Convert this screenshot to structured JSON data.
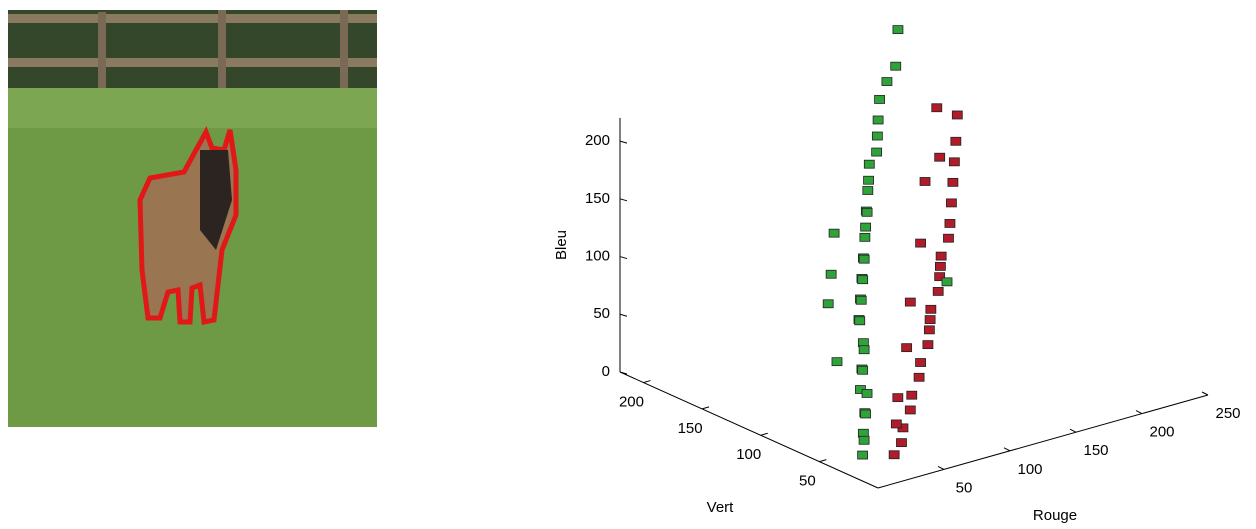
{
  "chart_data": {
    "type": "scatter3d",
    "xlabel": "Rouge",
    "ylabel": "Vert",
    "zlabel": "Bleu",
    "xlim": [
      0,
      250
    ],
    "ylim": [
      0,
      220
    ],
    "zlim": [
      0,
      220
    ],
    "xticks": [
      50,
      100,
      150,
      200,
      250
    ],
    "yticks": [
      50,
      100,
      150,
      200
    ],
    "zticks": [
      0,
      50,
      100,
      150,
      200
    ],
    "series": [
      {
        "color": "#b01c2a",
        "x": [
          30,
          40,
          50,
          60,
          70,
          80,
          90,
          100,
          110,
          120,
          130,
          140,
          150,
          160,
          170,
          180,
          190,
          200,
          210,
          220,
          180,
          200,
          160,
          130,
          100,
          75,
          55,
          45,
          115,
          145
        ],
        "y": [
          20,
          25,
          35,
          40,
          50,
          55,
          65,
          70,
          80,
          90,
          95,
          105,
          115,
          120,
          130,
          140,
          150,
          160,
          170,
          180,
          150,
          175,
          140,
          110,
          85,
          60,
          45,
          35,
          85,
          110
        ],
        "z": [
          10,
          15,
          20,
          30,
          35,
          45,
          50,
          60,
          65,
          75,
          85,
          90,
          100,
          110,
          115,
          125,
          135,
          145,
          155,
          170,
          160,
          185,
          150,
          120,
          90,
          70,
          40,
          25,
          70,
          95
        ]
      },
      {
        "color": "#2fa33a",
        "x": [
          15,
          20,
          25,
          30,
          35,
          40,
          45,
          50,
          55,
          60,
          65,
          70,
          75,
          80,
          85,
          90,
          95,
          100,
          105,
          110,
          115,
          120,
          125,
          130,
          135,
          140,
          150,
          155,
          160,
          170,
          180,
          200,
          215,
          150,
          60,
          80,
          100,
          40
        ],
        "y": [
          30,
          35,
          40,
          45,
          50,
          60,
          60,
          70,
          75,
          80,
          85,
          95,
          100,
          105,
          110,
          115,
          120,
          125,
          130,
          135,
          140,
          145,
          150,
          155,
          160,
          165,
          170,
          175,
          180,
          190,
          195,
          210,
          225,
          110,
          110,
          130,
          150,
          80
        ],
        "z": [
          10,
          25,
          15,
          35,
          30,
          45,
          40,
          55,
          50,
          70,
          60,
          80,
          75,
          90,
          85,
          100,
          95,
          110,
          105,
          120,
          125,
          135,
          130,
          145,
          150,
          160,
          165,
          175,
          185,
          195,
          205,
          205,
          225,
          80,
          90,
          100,
          120,
          60
        ]
      }
    ]
  }
}
